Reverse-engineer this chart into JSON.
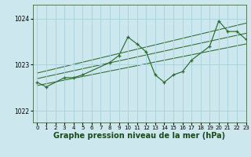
{
  "title": "Graphe pression niveau de la mer (hPa)",
  "background_color": "#cce8ee",
  "grid_color": "#aad4dd",
  "line_color": "#2d6a2d",
  "xlim": [
    -0.5,
    23
  ],
  "ylim": [
    1021.75,
    1024.3
  ],
  "yticks": [
    1022,
    1023,
    1024
  ],
  "xticks": [
    0,
    1,
    2,
    3,
    4,
    5,
    6,
    7,
    8,
    9,
    10,
    11,
    12,
    13,
    14,
    15,
    16,
    17,
    18,
    19,
    20,
    21,
    22,
    23
  ],
  "series": [
    {
      "x": [
        0,
        1,
        3,
        4,
        5,
        8,
        9,
        10,
        11,
        12,
        13,
        14,
        15,
        16,
        17,
        19,
        20,
        21,
        22,
        23
      ],
      "y": [
        1022.62,
        1022.52,
        1022.72,
        1022.72,
        1022.78,
        1023.05,
        1023.2,
        1023.6,
        1023.45,
        1023.28,
        1022.78,
        1022.62,
        1022.78,
        1022.85,
        1023.1,
        1023.4,
        1023.95,
        1023.72,
        1023.72,
        1023.55
      ]
    }
  ],
  "trend_lines": [
    {
      "x": [
        0,
        23
      ],
      "y": [
        1022.55,
        1023.45
      ]
    },
    {
      "x": [
        0,
        23
      ],
      "y": [
        1022.7,
        1023.68
      ]
    },
    {
      "x": [
        0,
        23
      ],
      "y": [
        1022.82,
        1023.9
      ]
    }
  ],
  "title_fontsize": 7,
  "tick_fontsize": 5,
  "ylabel_fontsize": 6
}
